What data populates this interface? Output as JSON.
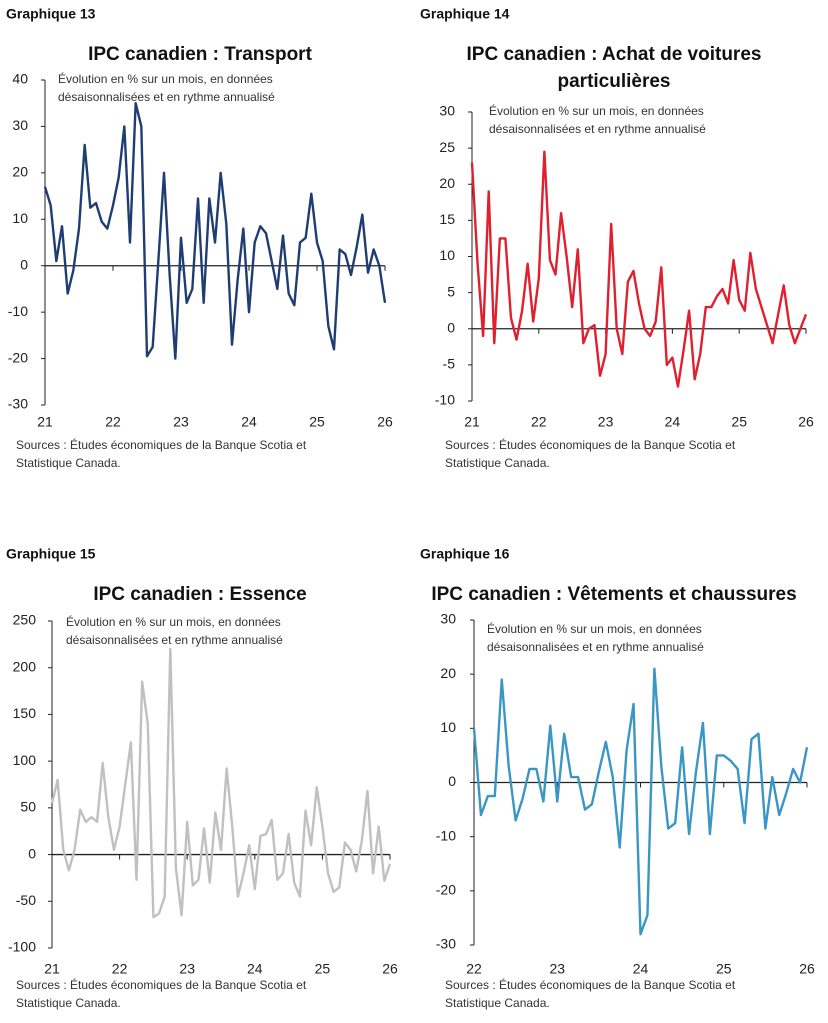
{
  "chart_data": [
    {
      "type": "line",
      "label": "Graphique 13",
      "title": [
        "IPC canadien : Transport"
      ],
      "subtitle": [
        "Évolution en % sur un mois, en données",
        "désaisonnalisées et en rythme annualisé"
      ],
      "source": [
        "Sources : Études économiques de la Banque Scotia et",
        "Statistique Canada."
      ],
      "categories": [
        "21",
        null,
        null,
        null,
        null,
        null,
        null,
        null,
        null,
        null,
        null,
        null,
        "22",
        null,
        null,
        null,
        null,
        null,
        null,
        null,
        null,
        null,
        null,
        null,
        "23",
        null,
        null,
        null,
        null,
        null,
        null,
        null,
        null,
        null,
        null,
        null,
        "24",
        null,
        null,
        null,
        null,
        null,
        null,
        null,
        null,
        null,
        null,
        null,
        "25",
        null,
        null,
        null,
        null,
        null,
        null,
        null,
        null,
        null,
        null,
        null,
        "26"
      ],
      "series": [
        {
          "color": "#1f3d73",
          "values": [
            17,
            13,
            1,
            8.5,
            -6,
            -1,
            8,
            26,
            12.5,
            13.5,
            9.5,
            8,
            13,
            19,
            30,
            5,
            35,
            30,
            -19.5,
            -17.5,
            1,
            20,
            -2,
            -20,
            6,
            -8,
            -5,
            14.5,
            -8,
            14.5,
            5,
            20,
            9,
            -17,
            -3,
            8,
            -10,
            5,
            8.5,
            7,
            1,
            -5,
            6.5,
            -6,
            -8.5,
            5,
            6,
            15.5,
            5,
            1,
            -13,
            -18,
            3.5,
            2.5,
            -2,
            4,
            11,
            -1.5,
            3.5,
            0,
            -8
          ]
        }
      ],
      "ylim": [
        -30,
        40
      ],
      "yticks": [
        -30,
        -20,
        -10,
        0,
        10,
        20,
        30,
        40
      ],
      "grid": false
    },
    {
      "type": "line",
      "label": "Graphique 14",
      "title": [
        "IPC canadien : Achat de voitures",
        "particulières"
      ],
      "subtitle": [
        "Évolution en % sur un mois, en données",
        "désaisonnalisées et en rythme annualisé"
      ],
      "source": [
        "Sources : Études économiques de la Banque Scotia et",
        "Statistique Canada."
      ],
      "categories": [
        "21",
        null,
        null,
        null,
        null,
        null,
        null,
        null,
        null,
        null,
        null,
        null,
        "22",
        null,
        null,
        null,
        null,
        null,
        null,
        null,
        null,
        null,
        null,
        null,
        "23",
        null,
        null,
        null,
        null,
        null,
        null,
        null,
        null,
        null,
        null,
        null,
        "24",
        null,
        null,
        null,
        null,
        null,
        null,
        null,
        null,
        null,
        null,
        null,
        "25",
        null,
        null,
        null,
        null,
        null,
        null,
        null,
        null,
        null,
        null,
        null,
        "26"
      ],
      "series": [
        {
          "color": "#e0202e",
          "values": [
            23,
            9,
            -1,
            19,
            -2,
            12.5,
            12.5,
            1.5,
            -1.5,
            2.5,
            9,
            1,
            7,
            24.5,
            9.5,
            7.5,
            16,
            10,
            3,
            11,
            -2,
            0,
            0.5,
            -6.5,
            -3.5,
            14.5,
            0,
            -3.5,
            6.5,
            8,
            3.5,
            0,
            -1,
            1,
            8.5,
            -5,
            -4,
            -8,
            -3,
            2.5,
            -7,
            -3.5,
            3,
            3,
            4.5,
            5.5,
            3.5,
            9.5,
            4,
            2.5,
            10.5,
            5.5,
            3,
            0.5,
            -2,
            2,
            6,
            0.5,
            -2,
            0,
            2
          ]
        }
      ],
      "ylim": [
        -10,
        30
      ],
      "yticks": [
        -10,
        -5,
        0,
        5,
        10,
        15,
        20,
        25,
        30
      ],
      "grid": false
    },
    {
      "type": "line",
      "label": "Graphique 15",
      "title": [
        "IPC canadien : Essence"
      ],
      "subtitle": [
        "Évolution en % sur un mois, en données",
        "désaisonnalisées et en rythme annualisé"
      ],
      "source": [
        "Sources : Études économiques de la Banque Scotia et",
        "Statistique Canada."
      ],
      "categories": [
        "21",
        null,
        null,
        null,
        null,
        null,
        null,
        null,
        null,
        null,
        null,
        null,
        "22",
        null,
        null,
        null,
        null,
        null,
        null,
        null,
        null,
        null,
        null,
        null,
        "23",
        null,
        null,
        null,
        null,
        null,
        null,
        null,
        null,
        null,
        null,
        null,
        "24",
        null,
        null,
        null,
        null,
        null,
        null,
        null,
        null,
        null,
        null,
        null,
        "25",
        null,
        null,
        null,
        null,
        null,
        null,
        null,
        null,
        null,
        null,
        null,
        "26"
      ],
      "series": [
        {
          "color": "#c0c0c0",
          "values": [
            55,
            80,
            5,
            -17,
            5,
            48,
            35,
            40,
            35,
            98,
            40,
            5,
            30,
            75,
            120,
            -27,
            185,
            140,
            -67,
            -63,
            -45,
            220,
            -15,
            -65,
            35,
            -33,
            -27,
            28,
            -30,
            45,
            5,
            92,
            30,
            -45,
            -20,
            10,
            -37,
            20,
            22,
            37,
            -27,
            -20,
            22,
            -30,
            -45,
            47,
            10,
            72,
            30,
            -20,
            -40,
            -35,
            13,
            5,
            -18,
            15,
            68,
            -20,
            30,
            -28,
            -10
          ]
        }
      ],
      "ylim": [
        -100,
        250
      ],
      "yticks": [
        -100,
        -50,
        0,
        50,
        100,
        150,
        200,
        250
      ],
      "grid": false
    },
    {
      "type": "line",
      "label": "Graphique 16",
      "title": [
        "IPC canadien : Vêtements et chaussures"
      ],
      "subtitle": [
        "Évolution en % sur un mois, en données",
        "désaisonnalisées et en rythme annualisé"
      ],
      "source": [
        "Sources : Études économiques de la Banque Scotia et",
        "Statistique Canada."
      ],
      "categories": [
        "22",
        null,
        null,
        null,
        null,
        null,
        null,
        null,
        null,
        null,
        null,
        null,
        "23",
        null,
        null,
        null,
        null,
        null,
        null,
        null,
        null,
        null,
        null,
        null,
        "24",
        null,
        null,
        null,
        null,
        null,
        null,
        null,
        null,
        null,
        null,
        null,
        "25",
        null,
        null,
        null,
        null,
        null,
        null,
        null,
        null,
        null,
        null,
        null,
        "26"
      ],
      "series": [
        {
          "color": "#3a96c4",
          "values": [
            10,
            -6,
            -2.5,
            -2.5,
            19,
            3,
            -7,
            -3,
            2.5,
            2.5,
            -3.5,
            10.5,
            -3.5,
            9,
            1,
            1,
            -5,
            -4,
            2,
            7.5,
            1,
            -12,
            6,
            14.5,
            -28,
            -24.5,
            21,
            3,
            -8.5,
            -7.5,
            6.5,
            -9.5,
            2,
            11,
            -9.5,
            5,
            5,
            4,
            2.5,
            -7.5,
            8,
            9,
            -8.5,
            1,
            -6,
            -2,
            2.5,
            0,
            6.5
          ]
        }
      ],
      "ylim": [
        -30,
        30
      ],
      "yticks": [
        -30,
        -20,
        -10,
        0,
        10,
        20,
        30
      ],
      "grid": false
    }
  ]
}
